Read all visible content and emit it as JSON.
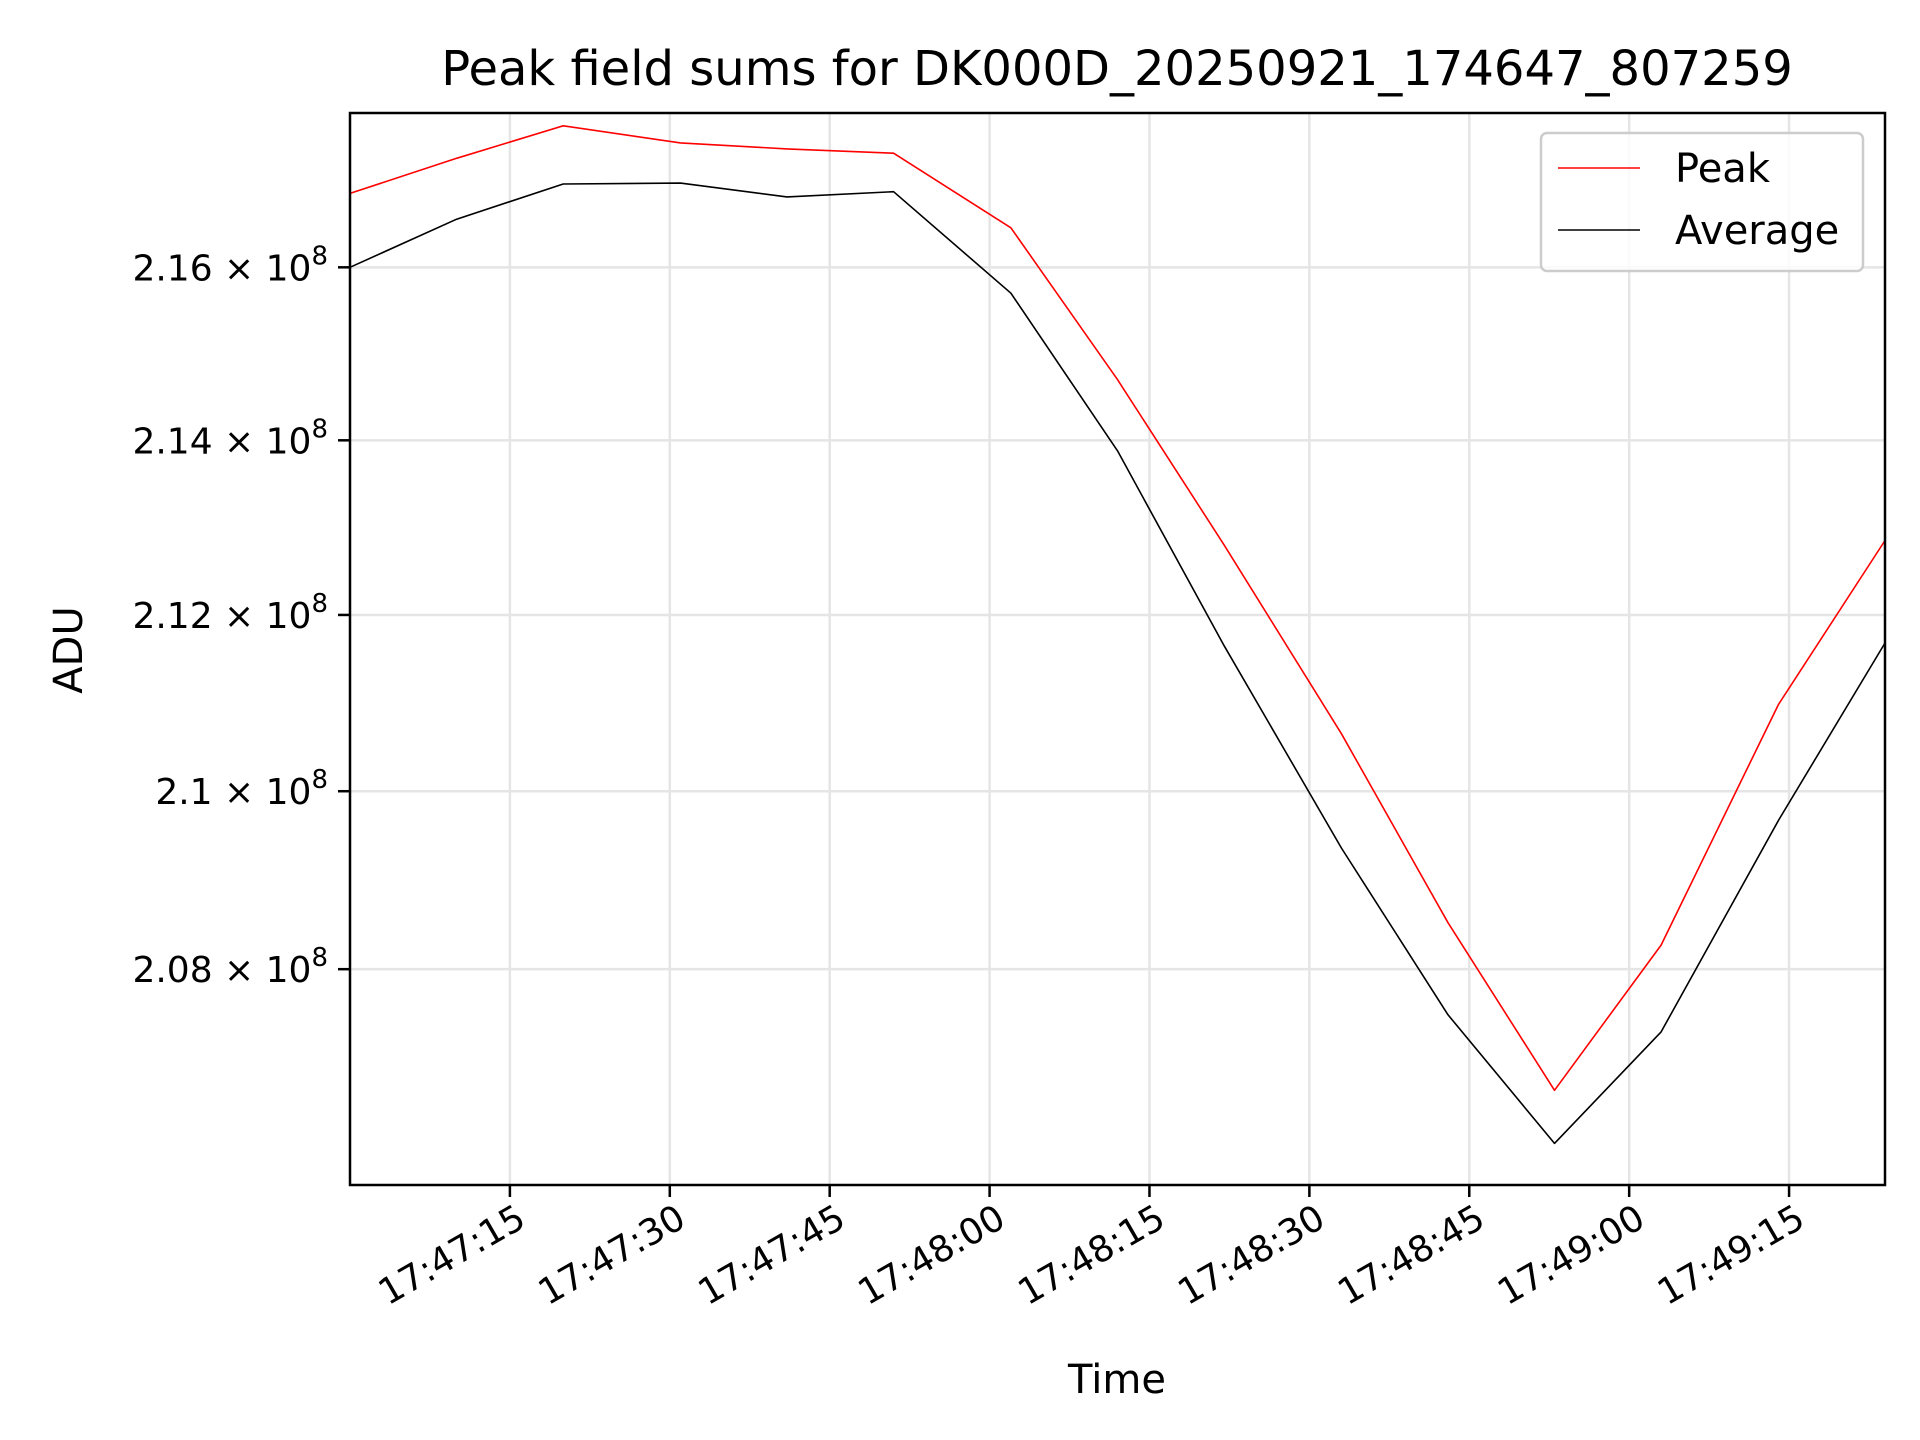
{
  "chart_data": {
    "type": "line",
    "title": "Peak field sums for DK000D_20250921_174647_807259",
    "xlabel": "Time",
    "ylabel": "ADU",
    "y_scale": "log",
    "xlim": [
      "17:47:00",
      "17:49:24"
    ],
    "ylim": [
      205600000,
      217800000
    ],
    "x_ticks": [
      "17:47:15",
      "17:47:30",
      "17:47:45",
      "17:48:00",
      "17:48:15",
      "17:48:30",
      "17:48:45",
      "17:49:00",
      "17:49:15"
    ],
    "y_ticks": [
      {
        "value": 208000000,
        "mantissa": "2.08",
        "exponent": "8"
      },
      {
        "value": 210000000,
        "mantissa": "2.1",
        "exponent": "8"
      },
      {
        "value": 212000000,
        "mantissa": "2.12",
        "exponent": "8"
      },
      {
        "value": 214000000,
        "mantissa": "2.14",
        "exponent": "8"
      },
      {
        "value": 216000000,
        "mantissa": "2.16",
        "exponent": "8"
      }
    ],
    "tick_base_symbol": "× 10",
    "grid": true,
    "legend": "top-right",
    "x": [
      "17:47:00",
      "17:47:10",
      "17:47:20",
      "17:47:31",
      "17:47:41",
      "17:47:51",
      "17:48:02",
      "17:48:12",
      "17:48:22",
      "17:48:33",
      "17:48:43",
      "17:48:53",
      "17:49:03",
      "17:49:14",
      "17:49:24"
    ],
    "series": [
      {
        "name": "Peak",
        "color": "#ff0000",
        "values": [
          216860000,
          217270000,
          217650000,
          217450000,
          217380000,
          217330000,
          216460000,
          214700000,
          212800000,
          210650000,
          208520000,
          206650000,
          208270000,
          210980000,
          212850000
        ]
      },
      {
        "name": "Average",
        "color": "#000000",
        "values": [
          216000000,
          216560000,
          216970000,
          216980000,
          216820000,
          216880000,
          215700000,
          213880000,
          211650000,
          209360000,
          207490000,
          206060000,
          207300000,
          209670000,
          211680000
        ]
      }
    ]
  }
}
